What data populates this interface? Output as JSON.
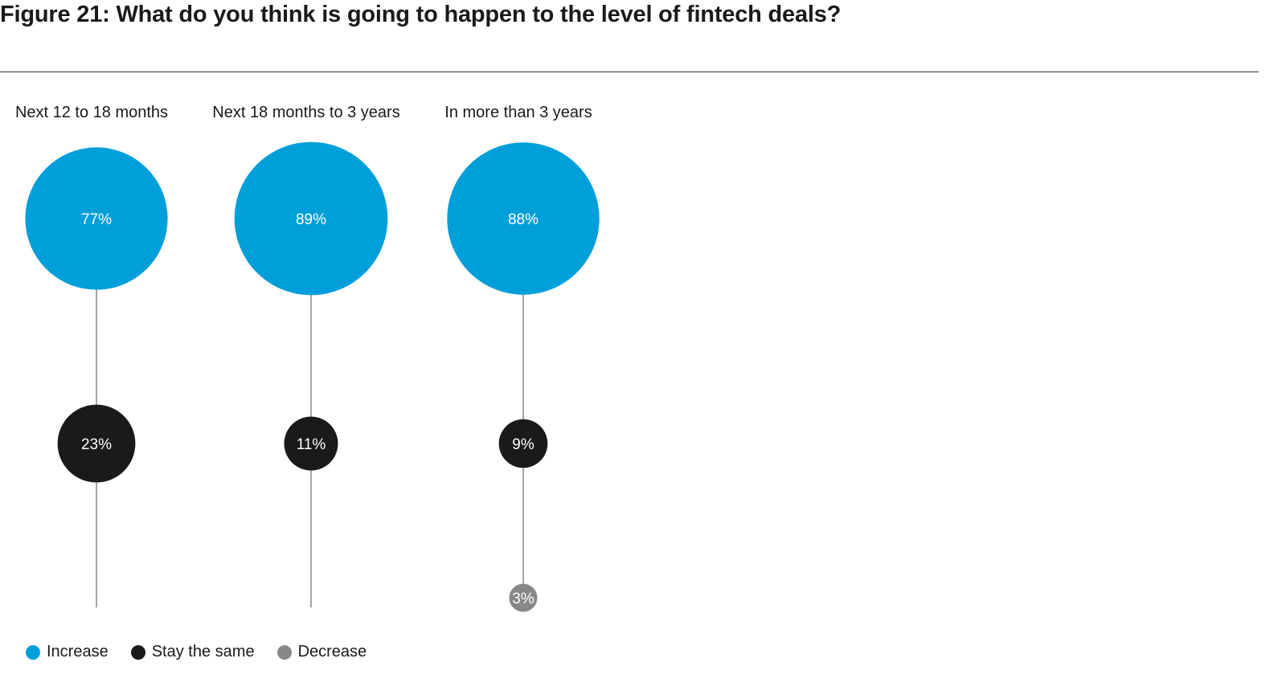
{
  "figure": {
    "title": "Figure 21: What do you think is going to happen to the level of fintech deals?"
  },
  "colors": {
    "increase": "#009fda",
    "stay_the_same": "#1a1a1a",
    "decrease": "#888888",
    "stem": "#777777"
  },
  "chart_data": {
    "type": "bubble",
    "title": "Figure 21: What do you think is going to happen to the level of fintech deals?",
    "categories": [
      "Next 12 to 18 months",
      "Next 18 months to 3 years",
      "In more than 3 years"
    ],
    "series": [
      {
        "name": "Increase",
        "key": "increase",
        "values": [
          77,
          89,
          88
        ],
        "labels": [
          "77%",
          "89%",
          "88%"
        ]
      },
      {
        "name": "Stay the same",
        "key": "stay_the_same",
        "values": [
          23,
          11,
          9
        ],
        "labels": [
          "23%",
          "11%",
          "9%"
        ]
      },
      {
        "name": "Decrease",
        "key": "decrease",
        "values": [
          0,
          0,
          3
        ],
        "labels": [
          "",
          "",
          "3%"
        ]
      }
    ],
    "legend_position": "bottom-left",
    "grid": false
  },
  "legend": [
    {
      "label": "Increase",
      "key": "increase"
    },
    {
      "label": "Stay the same",
      "key": "stay_the_same"
    },
    {
      "label": "Decrease",
      "key": "decrease"
    }
  ]
}
